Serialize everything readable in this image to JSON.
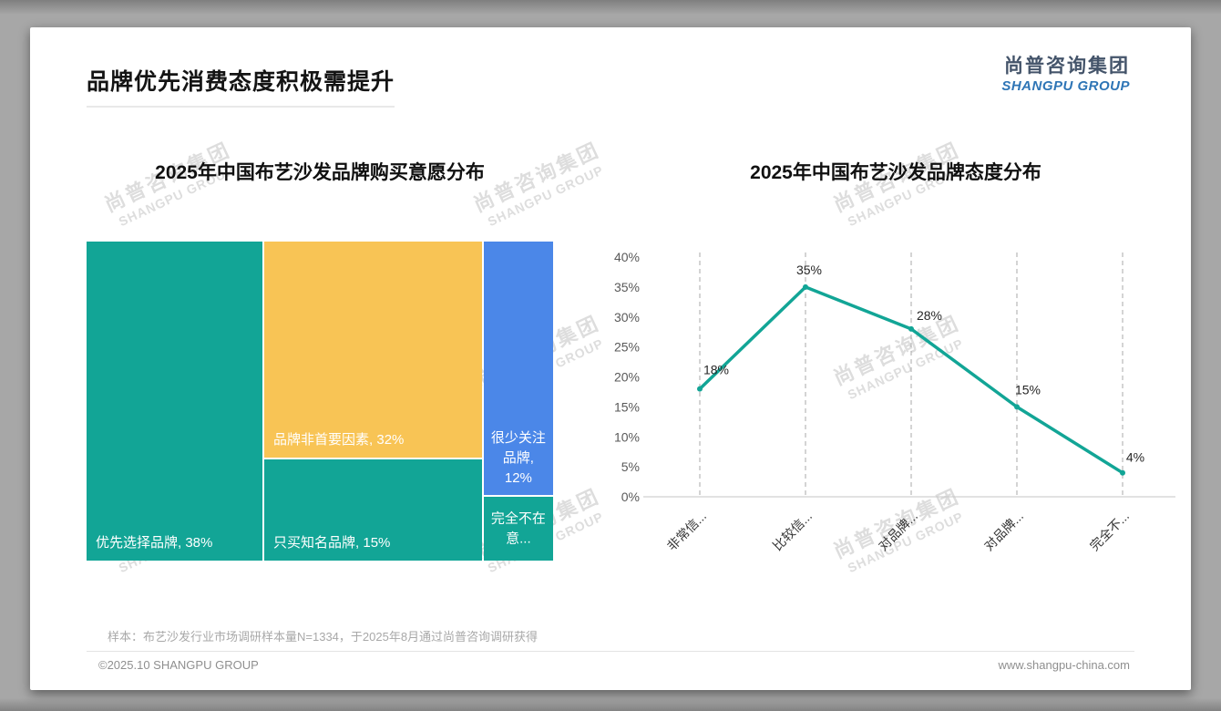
{
  "slide": {
    "title": "品牌优先消费态度积极需提升",
    "logo": {
      "cn": "尚普咨询集团",
      "en": "SHANGPU GROUP"
    },
    "watermark": {
      "cn": "尚普咨询集团",
      "en": "SHANGPU GROUP"
    },
    "footnote": "样本：布艺沙发行业市场调研样本量N=1334，于2025年8月通过尚普咨询调研获得",
    "footer_left": "©2025.10 SHANGPU GROUP",
    "footer_right": "www.shangpu-china.com"
  },
  "colors": {
    "teal": "#12a596",
    "yellow": "#f8c455",
    "blue": "#4b87e8",
    "logo_dark": "#44546a",
    "logo_blue": "#2e75b6",
    "watermark_gray": "#bdbdbd"
  },
  "chart_data": [
    {
      "type": "treemap",
      "title": "2025年中国布艺沙发品牌购买意愿分布",
      "items": [
        {
          "name": "优先选择品牌",
          "value": 38,
          "label": "优先选择品牌, 38%",
          "color": "#12a596",
          "align": "bl"
        },
        {
          "name": "品牌非首要因素",
          "value": 32,
          "label": "品牌非首要因素, 32%",
          "color": "#f8c455",
          "align": "bl"
        },
        {
          "name": "只买知名品牌",
          "value": 15,
          "label": "只买知名品牌, 15%",
          "color": "#12a596",
          "align": "bl"
        },
        {
          "name": "很少关注品牌",
          "value": 12,
          "label": "很少关注品牌, 12%",
          "color": "#4b87e8",
          "align": "bc"
        },
        {
          "name": "完全不在意品牌",
          "value": 3,
          "label": "完全不在意...",
          "color": "#12a596",
          "align": "cc"
        }
      ],
      "columns": [
        [
          0
        ],
        [
          1,
          2
        ],
        [
          3,
          4
        ]
      ]
    },
    {
      "type": "line",
      "title": "2025年中国布艺沙发品牌态度分布",
      "categories": [
        "非常信...",
        "比较信...",
        "对品牌...",
        "对品牌...",
        "完全不..."
      ],
      "values": [
        18,
        35,
        28,
        15,
        4
      ],
      "point_labels": [
        "18%",
        "35%",
        "28%",
        "15%",
        "4%"
      ],
      "ylim": [
        0,
        40
      ],
      "ytick_step": 5,
      "yticks": [
        "0%",
        "5%",
        "10%",
        "15%",
        "20%",
        "25%",
        "30%",
        "35%",
        "40%"
      ],
      "line_color": "#12a596",
      "grid": "vertical-dashed",
      "legend": "none"
    }
  ]
}
